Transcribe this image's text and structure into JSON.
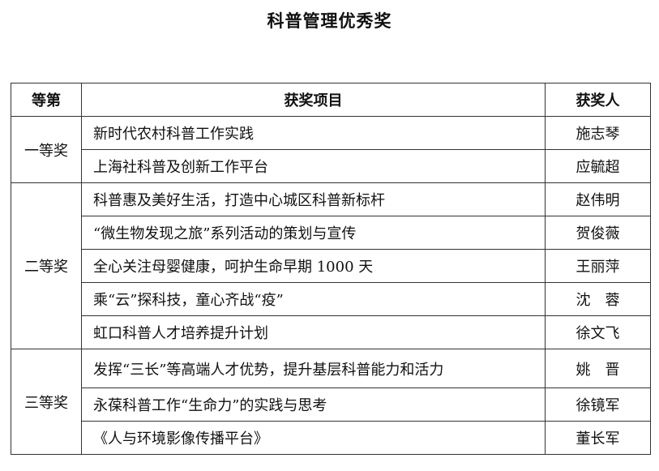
{
  "title": "科普管理优秀奖",
  "headers": {
    "level": "等第",
    "project": "获奖项目",
    "winner": "获奖人"
  },
  "groups": [
    {
      "level": "一等奖",
      "rows": [
        {
          "project": "新时代农村科普工作实践",
          "winner": "施志琴"
        },
        {
          "project": "上海社科普及创新工作平台",
          "winner": "应毓超"
        }
      ]
    },
    {
      "level": "二等奖",
      "rows": [
        {
          "project": "科普惠及美好生活，打造中心城区科普新标杆",
          "winner": "赵伟明"
        },
        {
          "project": "“微生物发现之旅”系列活动的策划与宣传",
          "winner": "贺俊薇"
        },
        {
          "project": "全心关注母婴健康，呵护生命早期 1000 天",
          "winner": "王丽萍"
        },
        {
          "project": "乘“云”探科技，童心齐战“疫”",
          "winner": "沈　蓉"
        },
        {
          "project": "虹口科普人才培养提升计划",
          "winner": "徐文飞"
        }
      ]
    },
    {
      "level": "三等奖",
      "rows": [
        {
          "project": "发挥“三长”等高端人才优势，提升基层科普能力和活力",
          "winner": "姚　晋"
        },
        {
          "project": "永葆科普工作“生命力”的实践与思考",
          "winner": "徐镜军"
        },
        {
          "project": "《人与环境影像传播平台》",
          "winner": "董长军"
        }
      ]
    }
  ]
}
